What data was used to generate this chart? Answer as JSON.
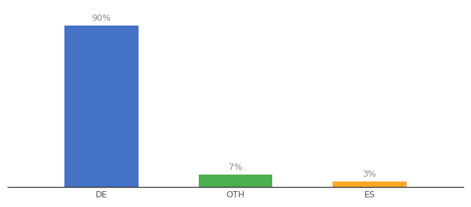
{
  "categories": [
    "DE",
    "OTH",
    "ES"
  ],
  "values": [
    90,
    7,
    3
  ],
  "bar_colors": [
    "#4472c4",
    "#4caf50",
    "#ffa726"
  ],
  "labels": [
    "90%",
    "7%",
    "3%"
  ],
  "ylim": [
    0,
    100
  ],
  "background_color": "#ffffff",
  "label_fontsize": 9,
  "tick_fontsize": 9,
  "bar_width": 0.55,
  "x_positions": [
    1,
    2,
    3
  ]
}
